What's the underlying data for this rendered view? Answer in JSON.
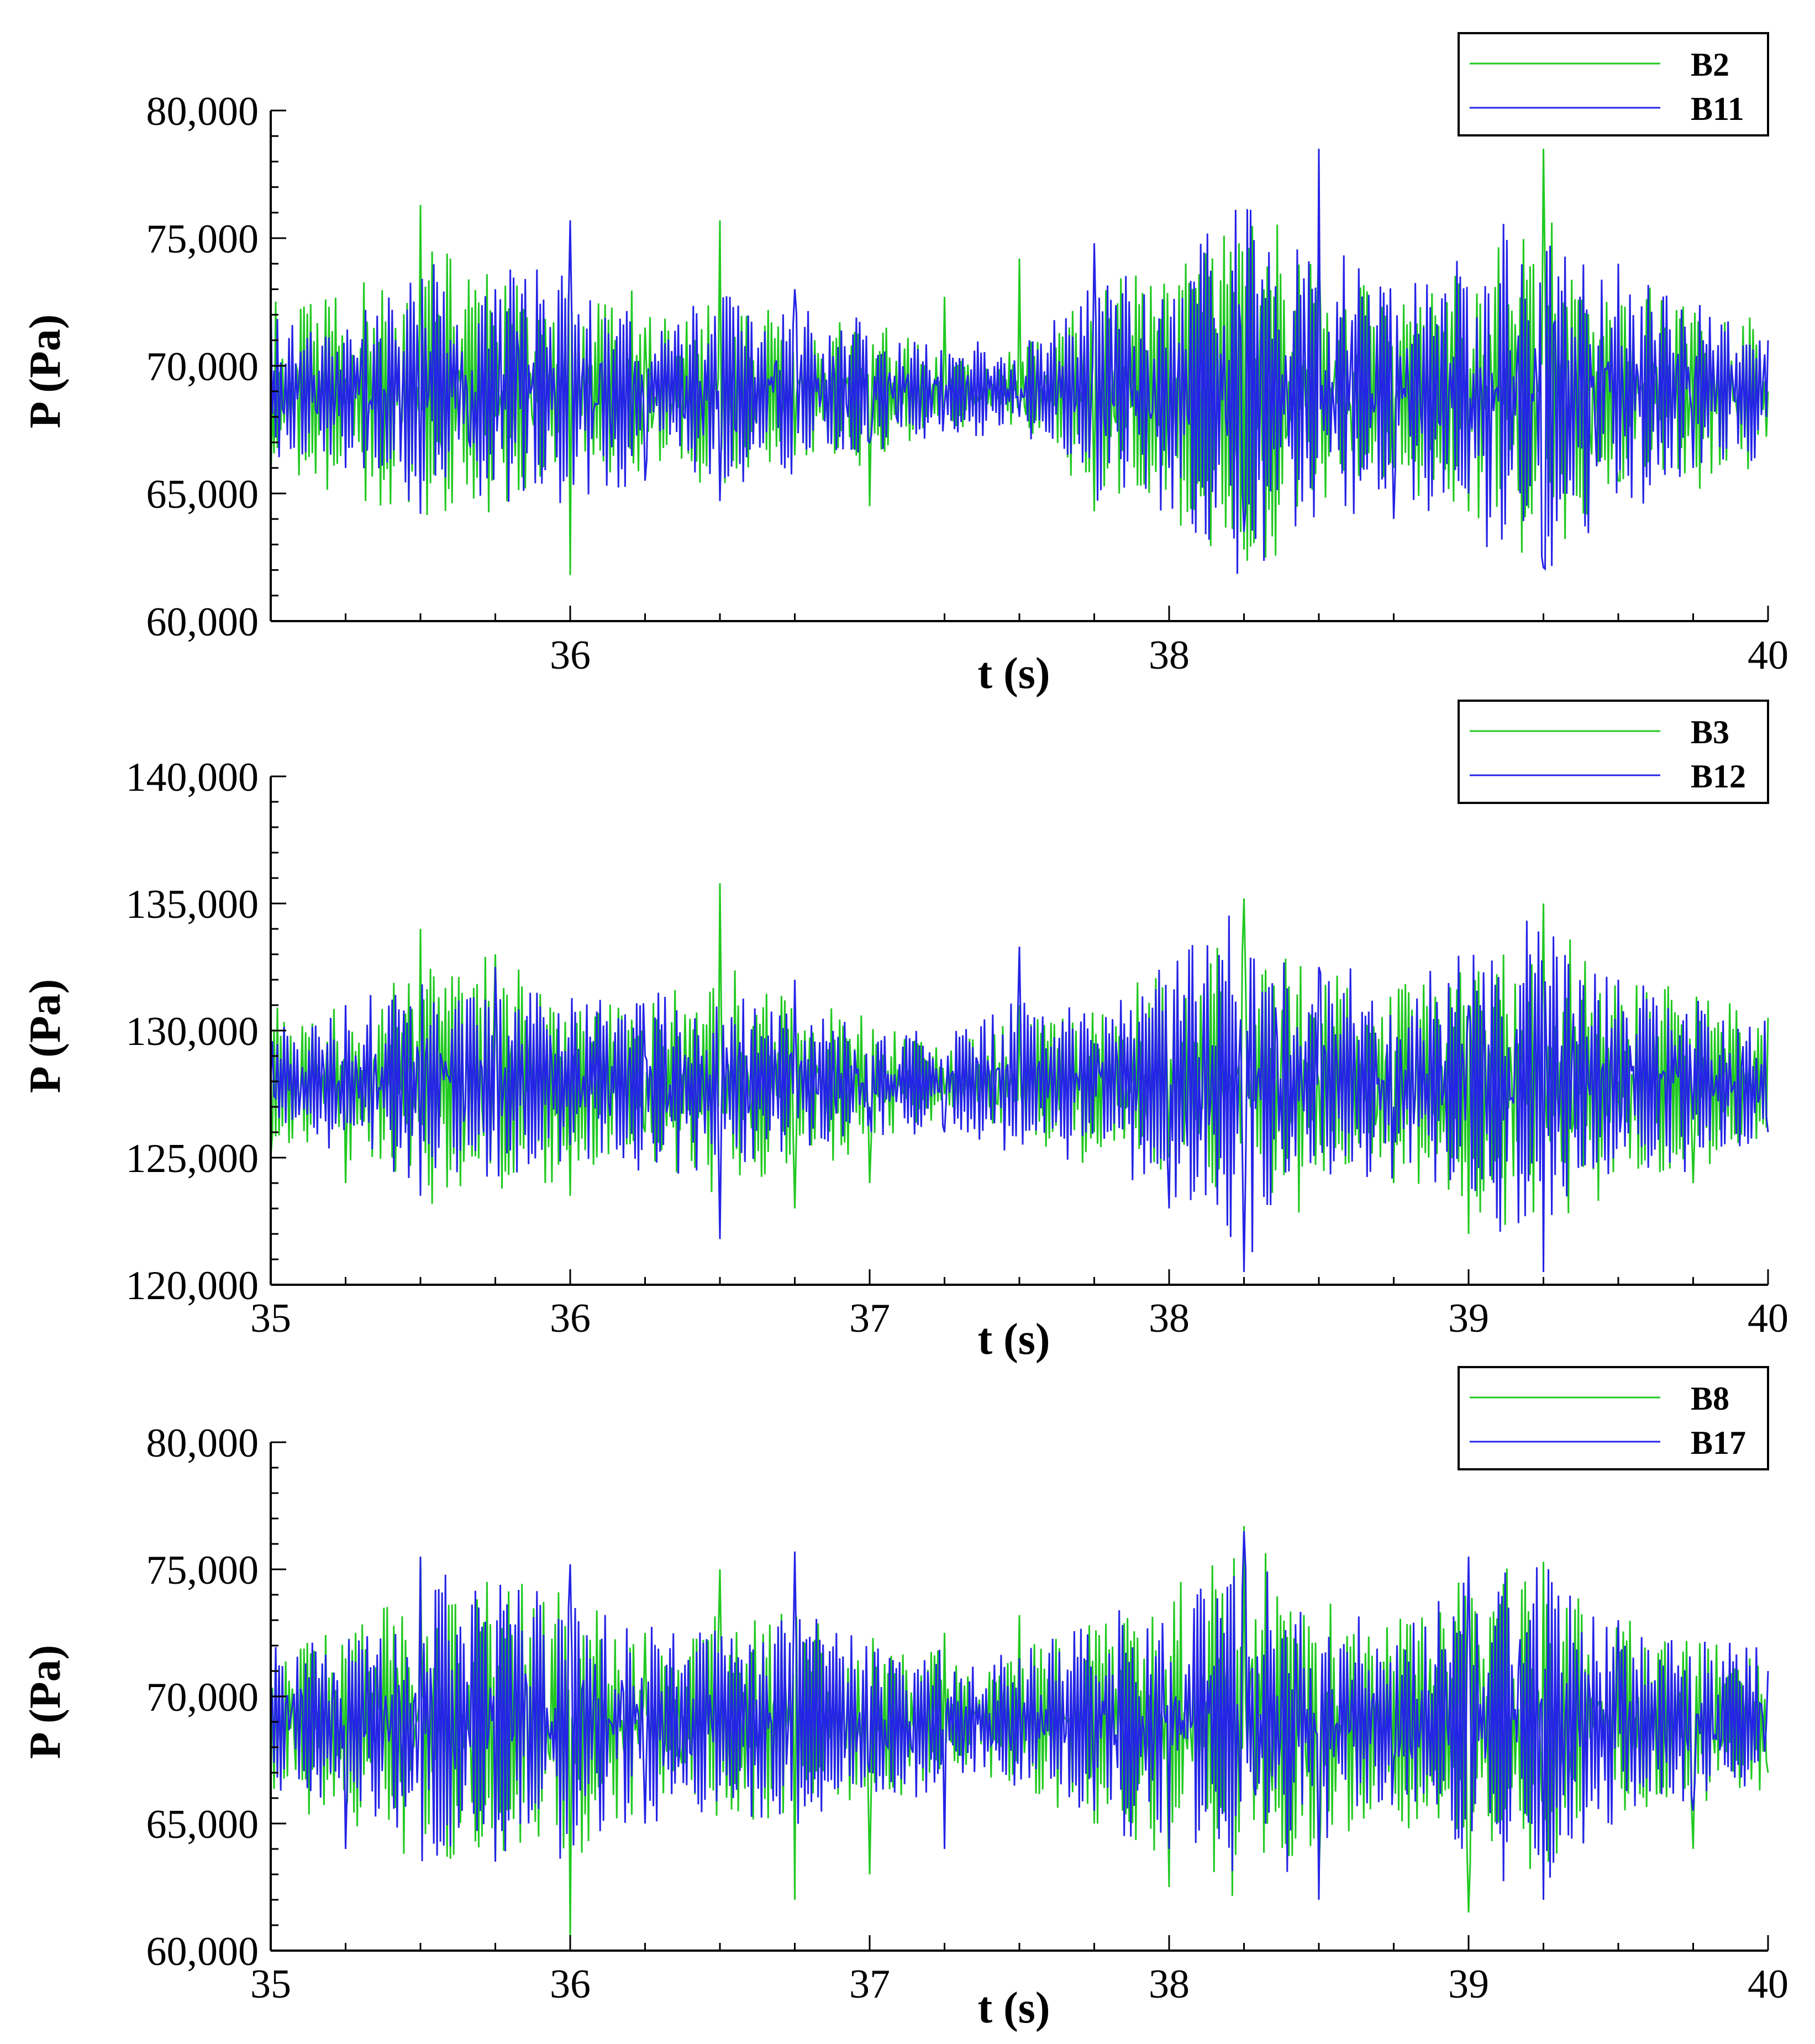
{
  "colors": {
    "green": "#22c922",
    "blue": "#2424e6"
  },
  "chart_data": [
    {
      "type": "line",
      "title": "",
      "xlabel": "t (s)",
      "ylabel": "P (Pa)",
      "xlim": [
        35,
        40
      ],
      "ylim": [
        60000,
        80000
      ],
      "xticks": [
        36,
        38,
        40
      ],
      "xticklabels": [
        "36",
        "38",
        "40"
      ],
      "yticks": [
        60000,
        65000,
        70000,
        75000,
        80000
      ],
      "yticklabels": [
        "60,000",
        "65,000",
        "70,000",
        "75,000",
        "80,000"
      ],
      "legend_position": "top-right",
      "series": [
        {
          "name": "B2",
          "color": "#22c922",
          "x": [
            35.0,
            35.25,
            35.5,
            35.75,
            36.0,
            36.25,
            36.5,
            36.75,
            37.0,
            37.25,
            37.5,
            37.75,
            38.0,
            38.25,
            38.5,
            38.75,
            39.0,
            39.25,
            39.5,
            39.75,
            40.0
          ],
          "y": [
            65200,
            69500,
            76300,
            68000,
            61800,
            71500,
            75700,
            66500,
            64500,
            72700,
            74200,
            64300,
            66000,
            62800,
            74700,
            66000,
            64300,
            78500,
            65500,
            67000,
            69000
          ],
          "envelope": [
            4000,
            4000,
            5500,
            5500,
            4000,
            4000,
            4000,
            3000,
            3000,
            1500,
            2000,
            4000,
            5500,
            7500,
            5500,
            4000,
            5500,
            7000,
            4500,
            4000,
            3000
          ]
        },
        {
          "name": "B11",
          "color": "#2424e6",
          "x": [
            35.0,
            35.25,
            35.5,
            35.75,
            36.0,
            36.25,
            36.5,
            36.75,
            37.0,
            37.25,
            37.5,
            37.75,
            38.0,
            38.25,
            38.5,
            38.75,
            39.0,
            39.25,
            39.5,
            39.75,
            40.0
          ],
          "y": [
            73000,
            66000,
            64200,
            73000,
            75700,
            65500,
            64700,
            73000,
            67000,
            68500,
            68000,
            74800,
            66000,
            63500,
            78500,
            64000,
            65000,
            62100,
            74000,
            66000,
            71000
          ],
          "envelope": [
            3000,
            3000,
            5500,
            5500,
            5000,
            4000,
            4000,
            3500,
            3000,
            2000,
            2000,
            4500,
            5000,
            8000,
            6000,
            4500,
            5500,
            8000,
            5000,
            4000,
            3000
          ]
        }
      ]
    },
    {
      "type": "line",
      "title": "",
      "xlabel": "t (s)",
      "ylabel": "P (Pa)",
      "xlim": [
        35,
        40
      ],
      "ylim": [
        120000,
        140000
      ],
      "xticks": [
        35,
        36,
        37,
        38,
        39,
        40
      ],
      "xticklabels": [
        "35",
        "36",
        "37",
        "38",
        "39",
        "40"
      ],
      "yticks": [
        120000,
        125000,
        130000,
        135000,
        140000
      ],
      "yticklabels": [
        "120,000",
        "125,000",
        "130,000",
        "135,000",
        "140,000"
      ],
      "legend_position": "top-right",
      "series": [
        {
          "name": "B3",
          "color": "#22c922",
          "x": [
            35.0,
            35.25,
            35.5,
            35.75,
            36.0,
            36.25,
            36.5,
            36.75,
            37.0,
            37.25,
            37.5,
            37.75,
            38.0,
            38.25,
            38.5,
            38.75,
            39.0,
            39.25,
            39.5,
            39.75,
            40.0
          ],
          "y": [
            125000,
            124000,
            134000,
            133000,
            123500,
            126000,
            135800,
            123000,
            124000,
            127500,
            131000,
            126000,
            125000,
            135200,
            128000,
            124000,
            122000,
            135000,
            128000,
            124000,
            130500
          ],
          "envelope": [
            3000,
            3000,
            5000,
            5000,
            4000,
            3500,
            5000,
            3500,
            3000,
            1500,
            2500,
            3500,
            5000,
            6500,
            5000,
            4000,
            5000,
            6500,
            4500,
            3500,
            3000
          ]
        },
        {
          "name": "B12",
          "color": "#2424e6",
          "x": [
            35.0,
            35.25,
            35.5,
            35.75,
            36.0,
            36.25,
            36.5,
            36.75,
            37.0,
            37.25,
            37.5,
            37.75,
            38.0,
            38.25,
            38.5,
            38.75,
            39.0,
            39.25,
            39.5,
            39.75,
            40.0
          ],
          "y": [
            128000,
            131000,
            123500,
            132500,
            125500,
            129000,
            121800,
            132000,
            127000,
            126000,
            133300,
            129500,
            123000,
            120500,
            132500,
            127000,
            131000,
            120500,
            132000,
            126500,
            126000
          ],
          "envelope": [
            2500,
            3000,
            4500,
            4500,
            4000,
            3500,
            4000,
            3000,
            2500,
            2000,
            3500,
            3000,
            5000,
            7000,
            5000,
            4000,
            5500,
            7000,
            4500,
            3500,
            2500
          ]
        }
      ]
    },
    {
      "type": "line",
      "title": "",
      "xlabel": "t (s)",
      "ylabel": "P (Pa)",
      "xlim": [
        35,
        40
      ],
      "ylim": [
        60000,
        80000
      ],
      "xticks": [
        35,
        36,
        37,
        38,
        39,
        40
      ],
      "xticklabels": [
        "35",
        "36",
        "37",
        "38",
        "39",
        "40"
      ],
      "yticks": [
        60000,
        65000,
        70000,
        75000,
        80000
      ],
      "yticklabels": [
        "60,000",
        "65,000",
        "70,000",
        "75,000",
        "80,000"
      ],
      "legend_position": "top-right",
      "series": [
        {
          "name": "B8",
          "color": "#22c922",
          "x": [
            35.0,
            35.25,
            35.5,
            35.75,
            36.0,
            36.25,
            36.5,
            36.75,
            37.0,
            37.25,
            37.5,
            37.75,
            38.0,
            38.25,
            38.5,
            38.75,
            39.0,
            39.25,
            39.5,
            39.75,
            40.0
          ],
          "y": [
            66500,
            71500,
            75500,
            63500,
            60500,
            72500,
            75000,
            62000,
            63000,
            72500,
            73200,
            65000,
            62500,
            76700,
            63000,
            71000,
            61500,
            75300,
            68000,
            64000,
            67000
          ],
          "envelope": [
            3500,
            4000,
            6000,
            6000,
            5500,
            4000,
            4500,
            4500,
            3500,
            3000,
            3000,
            4000,
            5500,
            7500,
            5000,
            4000,
            6000,
            6500,
            4500,
            3500,
            3000
          ]
        },
        {
          "name": "B17",
          "color": "#2424e6",
          "x": [
            35.0,
            35.25,
            35.5,
            35.75,
            36.0,
            36.25,
            36.5,
            36.75,
            37.0,
            37.25,
            37.5,
            37.75,
            38.0,
            38.25,
            38.5,
            38.75,
            39.0,
            39.25,
            39.5,
            39.75,
            40.0
          ],
          "y": [
            70500,
            64000,
            75500,
            63500,
            75200,
            65000,
            66500,
            75700,
            67000,
            64000,
            71500,
            65500,
            64000,
            76500,
            62000,
            67500,
            75500,
            62000,
            73000,
            65500,
            71000
          ],
          "envelope": [
            3000,
            3500,
            6000,
            6000,
            5500,
            4000,
            4000,
            4500,
            3500,
            3000,
            3000,
            4000,
            5500,
            7500,
            5000,
            3500,
            6000,
            7000,
            4000,
            3500,
            3000
          ]
        }
      ]
    }
  ]
}
